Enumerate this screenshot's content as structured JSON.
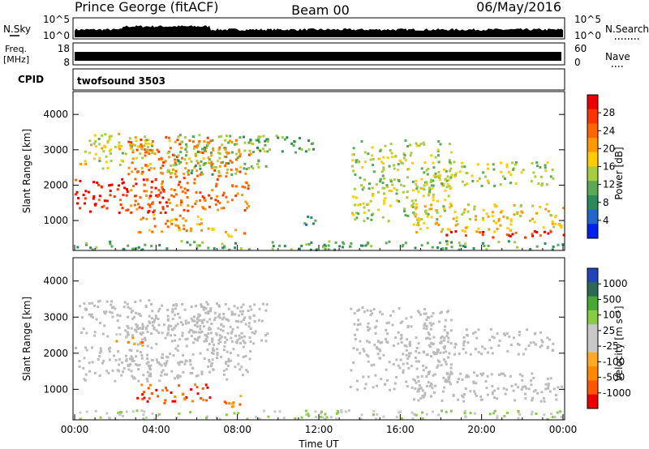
{
  "header": {
    "station": "Prince George (fitACF)",
    "beam": "Beam 00",
    "date": "06/May/2016"
  },
  "noise_panel": {
    "left_label": "N.Sky",
    "left_ticks": [
      "10^5",
      "10^0"
    ],
    "right_ticks": [
      "10^5",
      "10^0"
    ],
    "right_label": "N.Search"
  },
  "freq_panel": {
    "left_label_1": "Freq.",
    "left_label_2": "[MHz]",
    "left_ticks": [
      "18",
      "8"
    ],
    "right_ticks": [
      "60",
      "0"
    ],
    "right_label": "Nave"
  },
  "cpid_panel": {
    "label": "CPID",
    "program": "twofsound 3503"
  },
  "colors": {
    "power_scale": [
      "#0022ee",
      "#2266cc",
      "#2a8a5a",
      "#5aaa55",
      "#a8cc40",
      "#ffcc00",
      "#ff9900",
      "#ff6600",
      "#ff3300",
      "#ee0000"
    ],
    "velocity_scale": [
      "#2244bb",
      "#2a6a55",
      "#44aa33",
      "#88cc44",
      "#c8c8c8",
      "#c8c8c8",
      "#ffaa22",
      "#ff8800",
      "#ff5500",
      "#ee0000"
    ],
    "ground_scatter": "#bbbbbb"
  },
  "chart_data": [
    {
      "type": "heatmap",
      "title": "Power",
      "ylabel": "Slant Range [km]",
      "xlabel": "",
      "ylim": [
        200,
        4600
      ],
      "xlim_hours": [
        0,
        24
      ],
      "yticks": [
        "4000",
        "3000",
        "2000",
        "1000"
      ],
      "colorbar_label": "Power [dB]",
      "colorbar_ticks": [
        "28",
        "24",
        "20",
        "16",
        "12",
        "8",
        "4"
      ],
      "colorbar_range": [
        0,
        30
      ],
      "bands": [
        {
          "t": [
            0.0,
            4.5
          ],
          "r": [
            1250,
            2200
          ],
          "v": 27
        },
        {
          "t": [
            2.5,
            8.6
          ],
          "r": [
            1300,
            3400
          ],
          "v": 22
        },
        {
          "t": [
            0.2,
            4.0
          ],
          "r": [
            2500,
            3500
          ],
          "v": 15
        },
        {
          "t": [
            4.5,
            9.5
          ],
          "r": [
            2300,
            3450
          ],
          "v": 12
        },
        {
          "t": [
            8.2,
            11.7
          ],
          "r": [
            2950,
            3450
          ],
          "v": 10
        },
        {
          "t": [
            3.0,
            6.5
          ],
          "r": [
            650,
            1200
          ],
          "v": 20
        },
        {
          "t": [
            6.5,
            8.3
          ],
          "r": [
            550,
            850
          ],
          "v": 18
        },
        {
          "t": [
            11.0,
            11.8
          ],
          "r": [
            850,
            1150
          ],
          "v": 8
        },
        {
          "t": [
            13.5,
            18.5
          ],
          "r": [
            1000,
            3300
          ],
          "v": 14
        },
        {
          "t": [
            16.5,
            24.0
          ],
          "r": [
            700,
            1500
          ],
          "v": 17
        },
        {
          "t": [
            18.0,
            24.0
          ],
          "r": [
            550,
            750
          ],
          "v": 26
        },
        {
          "t": [
            17.0,
            23.5
          ],
          "r": [
            2000,
            2700
          ],
          "v": 14
        },
        {
          "t": [
            0.0,
            24.0
          ],
          "r": [
            200,
            450
          ],
          "v": 10
        }
      ]
    },
    {
      "type": "heatmap",
      "title": "Velocity",
      "ylabel": "Slant Range [km]",
      "xlabel": "Time UT",
      "ylim": [
        200,
        4600
      ],
      "xlim_hours": [
        0,
        24
      ],
      "xticks": [
        "00:00",
        "04:00",
        "08:00",
        "12:00",
        "16:00",
        "20:00",
        "00:00"
      ],
      "yticks": [
        "4000",
        "3000",
        "2000",
        "1000"
      ],
      "colorbar_label": "Velocity [m s⁻¹]",
      "colorbar_ticks": [
        "1000",
        "500",
        "100",
        "25",
        "-25",
        "-100",
        "-500",
        "-1000"
      ],
      "colorbar_range": [
        -1000,
        1000
      ],
      "bands": [
        {
          "t": [
            0.0,
            4.5
          ],
          "r": [
            1250,
            2200
          ],
          "v": 0
        },
        {
          "t": [
            2.5,
            8.6
          ],
          "r": [
            1300,
            3400
          ],
          "v": 0
        },
        {
          "t": [
            0.2,
            4.0
          ],
          "r": [
            2500,
            3500
          ],
          "v": 0
        },
        {
          "t": [
            4.5,
            9.5
          ],
          "r": [
            2300,
            3450
          ],
          "v": 0
        },
        {
          "t": [
            3.0,
            6.5
          ],
          "r": [
            650,
            1200
          ],
          "v": -700
        },
        {
          "t": [
            6.5,
            8.3
          ],
          "r": [
            550,
            850
          ],
          "v": -600
        },
        {
          "t": [
            2.0,
            3.3
          ],
          "r": [
            2200,
            2600
          ],
          "v": -400
        },
        {
          "t": [
            13.5,
            18.5
          ],
          "r": [
            1000,
            3300
          ],
          "v": 0
        },
        {
          "t": [
            16.5,
            24.0
          ],
          "r": [
            700,
            1500
          ],
          "v": 0
        },
        {
          "t": [
            17.0,
            23.5
          ],
          "r": [
            2000,
            2700
          ],
          "v": 0
        },
        {
          "t": [
            0.0,
            24.0
          ],
          "r": [
            200,
            450
          ],
          "v": 120
        }
      ]
    }
  ]
}
